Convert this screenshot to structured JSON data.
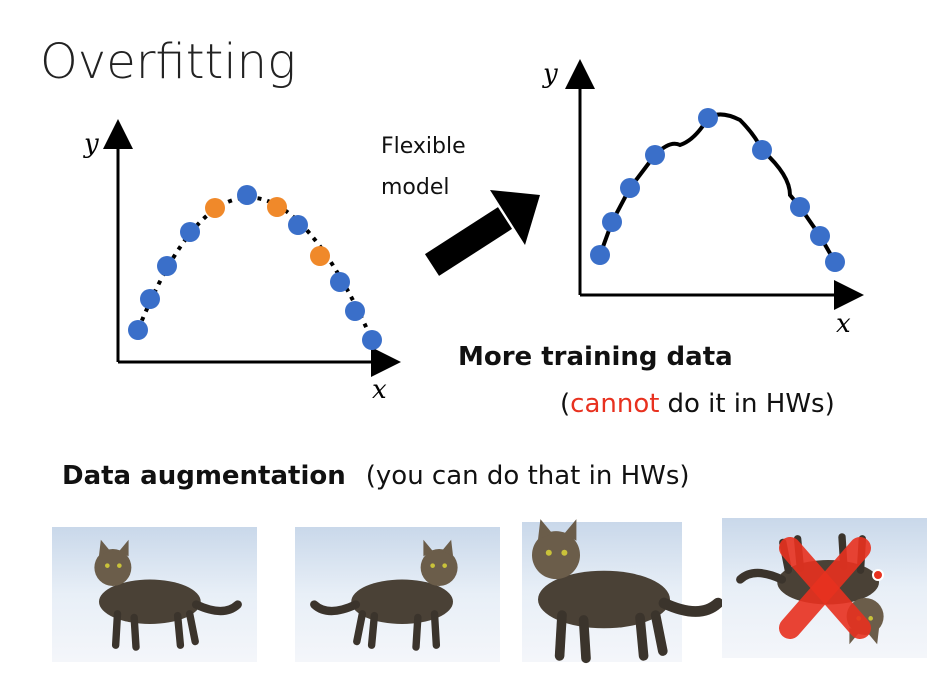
{
  "title": "Overfitting",
  "left_plot": {
    "y_label": "y",
    "x_label": "x"
  },
  "arrow_label": {
    "line1": "Flexible",
    "line2": "model"
  },
  "right_plot": {
    "y_label": "y",
    "x_label": "x"
  },
  "more_data": {
    "heading": "More training data",
    "open": "(",
    "highlight": "cannot",
    "rest": "do it in HWs)"
  },
  "augmentation": {
    "heading": "Data augmentation",
    "note": "(you can do that in HWs)"
  }
}
